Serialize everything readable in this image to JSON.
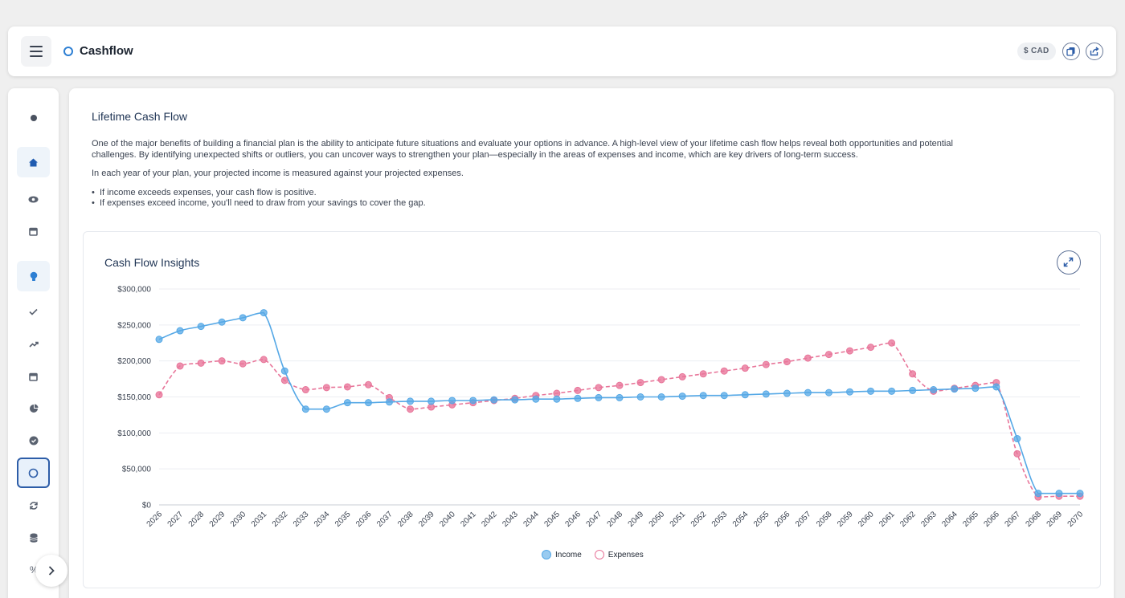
{
  "header": {
    "title": "Cashflow",
    "currency": "$ CAD"
  },
  "sidebar": {
    "bottom_label": "%"
  },
  "page": {
    "section_title": "Lifetime Cash Flow",
    "intro_line1": "One of the major benefits of building a financial plan is the ability to anticipate future situations and evaluate your options in advance. A high-level view of your lifetime cash flow helps reveal both opportunities and potential",
    "intro_line2": "challenges. By identifying unexpected shifts or outliers, you can uncover ways to strengthen your plan—especially in the areas of expenses and income, which are key drivers of long-term success.",
    "intro2": "In each year of your plan, your projected income is measured against your projected expenses.",
    "bullet1": "If income exceeds expenses, your cash flow is positive.",
    "bullet2": "If expenses exceed income, you'll need to draw from your savings to cover the gap."
  },
  "card": {
    "title": "Cash Flow Insights"
  },
  "colors": {
    "income": "#55a8e6",
    "expenses": "#e8769a",
    "accent": "#2d7fd3"
  },
  "chart_data": {
    "type": "line",
    "title": "Cash Flow Insights",
    "ylim": [
      0,
      300000
    ],
    "yticks": [
      {
        "value": 0,
        "label": "$0"
      },
      {
        "value": 50000,
        "label": "$50,000"
      },
      {
        "value": 100000,
        "label": "$100,000"
      },
      {
        "value": 150000,
        "label": "$150,000"
      },
      {
        "value": 200000,
        "label": "$200,000"
      },
      {
        "value": 250000,
        "label": "$250,000"
      },
      {
        "value": 300000,
        "label": "$300,000"
      }
    ],
    "categories": [
      "2026",
      "2027",
      "2028",
      "2029",
      "2030",
      "2031",
      "2032",
      "2033",
      "2034",
      "2035",
      "2036",
      "2037",
      "2038",
      "2039",
      "2040",
      "2041",
      "2042",
      "2043",
      "2044",
      "2045",
      "2046",
      "2047",
      "2048",
      "2049",
      "2050",
      "2051",
      "2052",
      "2053",
      "2054",
      "2055",
      "2056",
      "2057",
      "2058",
      "2059",
      "2060",
      "2061",
      "2062",
      "2063",
      "2064",
      "2065",
      "2066",
      "2067",
      "2068",
      "2069",
      "2070"
    ],
    "series": [
      {
        "name": "Income",
        "style": "solid",
        "values": [
          230000,
          242000,
          248000,
          254000,
          260000,
          267000,
          186000,
          133000,
          133000,
          142000,
          142000,
          143000,
          144000,
          144000,
          145000,
          145000,
          146000,
          146000,
          147000,
          147000,
          148000,
          149000,
          149000,
          150000,
          150000,
          151000,
          152000,
          152000,
          153000,
          154000,
          155000,
          156000,
          156000,
          157000,
          158000,
          158000,
          159000,
          160000,
          161000,
          162000,
          164000,
          92000,
          16000,
          16000,
          16000
        ]
      },
      {
        "name": "Expenses",
        "style": "dashed",
        "values": [
          153000,
          193000,
          197000,
          200000,
          196000,
          202000,
          173000,
          160000,
          163000,
          164000,
          167000,
          149000,
          133000,
          136000,
          139000,
          142000,
          145000,
          148000,
          152000,
          155000,
          159000,
          163000,
          166000,
          170000,
          174000,
          178000,
          182000,
          186000,
          190000,
          195000,
          199000,
          204000,
          209000,
          214000,
          219000,
          225000,
          182000,
          158000,
          162000,
          166000,
          170000,
          71000,
          11000,
          12000,
          12000
        ]
      }
    ],
    "legend_position": "bottom-center",
    "grid": true
  }
}
